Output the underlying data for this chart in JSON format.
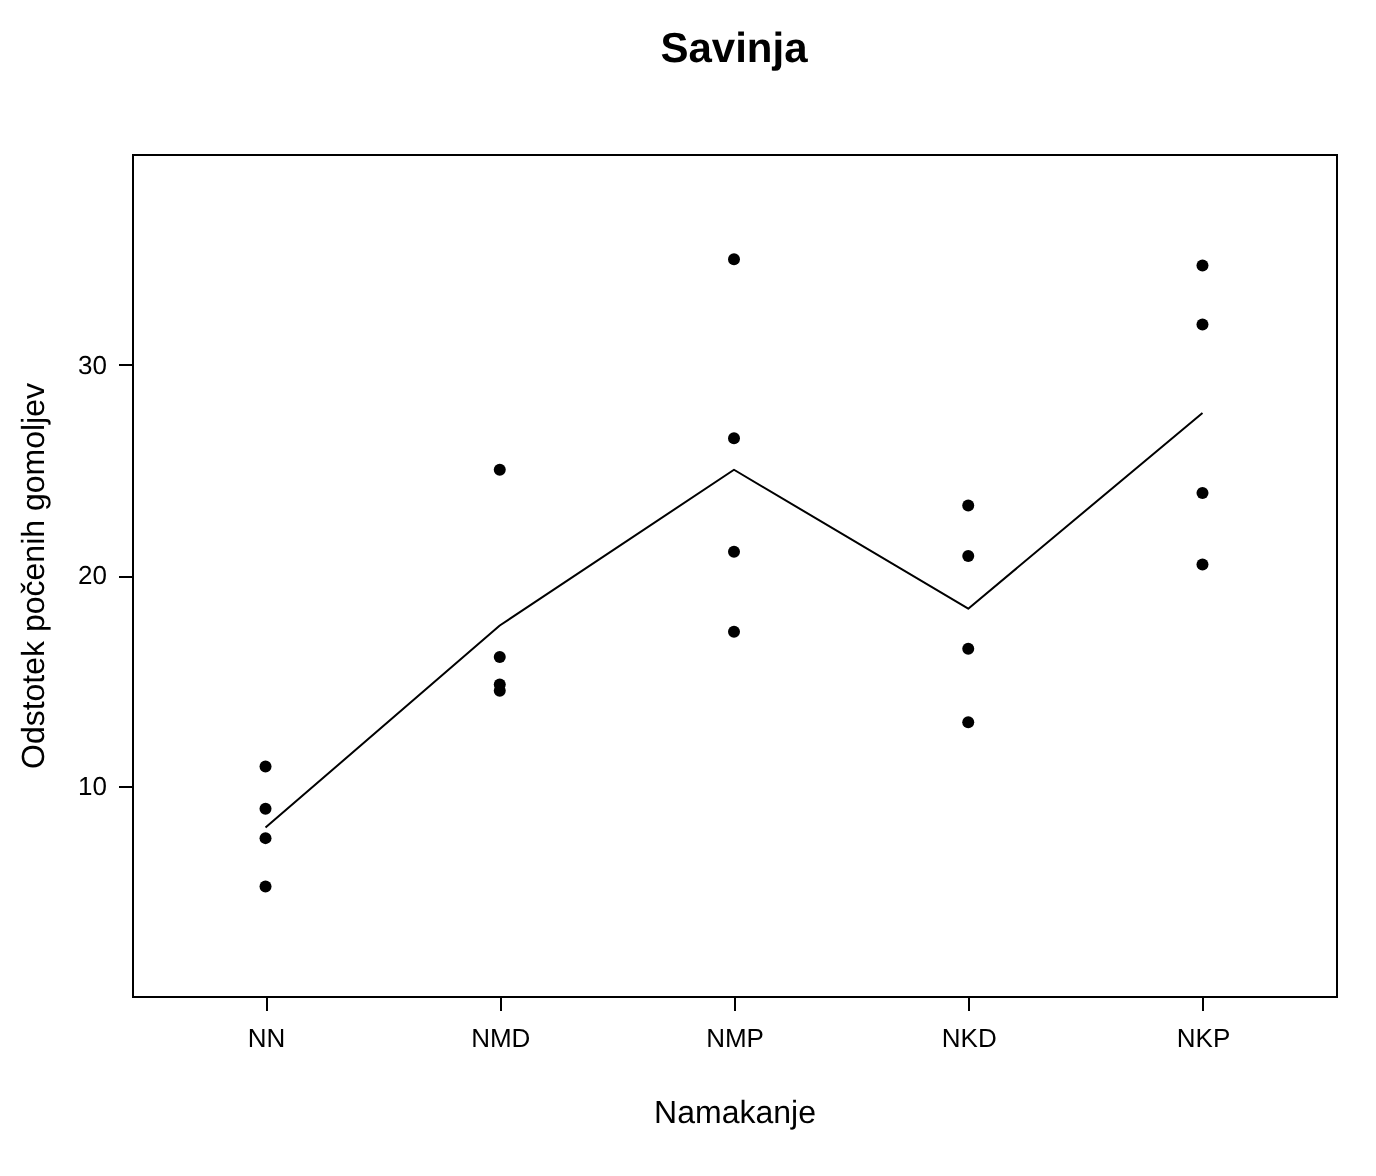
{
  "chart_data": {
    "type": "scatter",
    "title": "Savinja",
    "xlabel": "Namakanje",
    "ylabel": "Odstotek počenih gomoljev",
    "categories": [
      "NN",
      "NMD",
      "NMP",
      "NKD",
      "NKP"
    ],
    "ylim": [
      0,
      40
    ],
    "yticks": [
      10,
      20,
      30
    ],
    "grid": false,
    "series": [
      {
        "color": "#000000",
        "marker": "circle",
        "x": [
          "NN",
          "NN",
          "NN",
          "NN",
          "NMD",
          "NMD",
          "NMD",
          "NMD",
          "NMP",
          "NMP",
          "NMP",
          "NMP",
          "NKD",
          "NKD",
          "NKD",
          "NKD",
          "NKP",
          "NKP",
          "NKP",
          "NKP"
        ],
        "values": [
          10.9,
          8.9,
          7.5,
          5.2,
          25.0,
          16.1,
          14.8,
          14.5,
          35.0,
          26.5,
          21.1,
          17.3,
          23.3,
          20.9,
          16.5,
          13.0,
          34.7,
          31.9,
          23.9,
          20.5
        ]
      },
      {
        "type": "line",
        "color": "#000000",
        "marker": "none",
        "line_style": "solid",
        "values": [
          8.0,
          17.6,
          25.0,
          18.4,
          27.7
        ]
      }
    ]
  }
}
